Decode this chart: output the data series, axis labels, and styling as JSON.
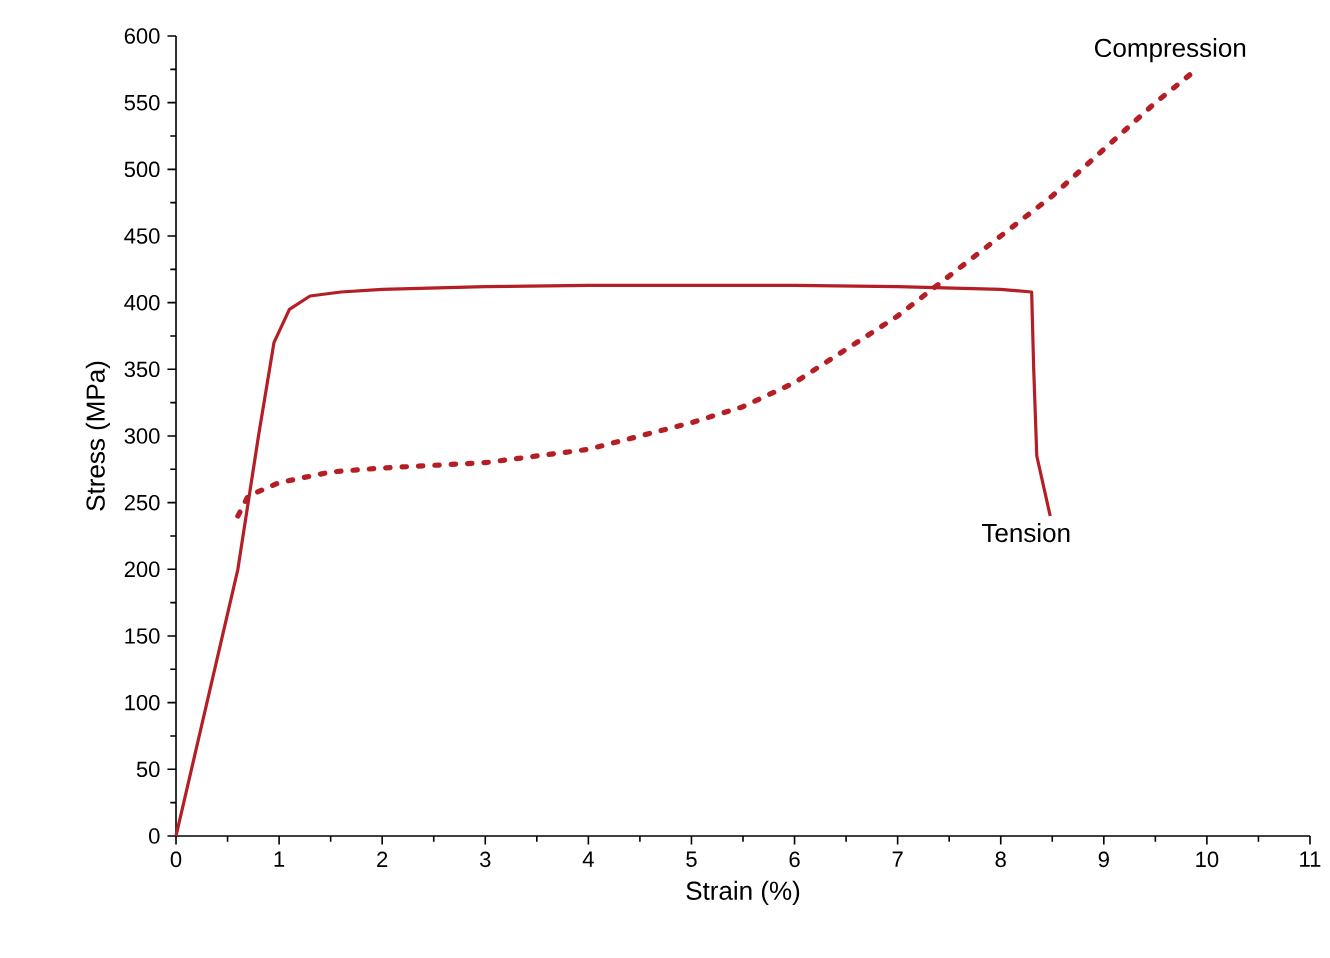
{
  "chart_data": {
    "type": "line",
    "xlabel": "Strain (%)",
    "ylabel": "Stress (MPa)",
    "xlim": [
      0,
      11
    ],
    "ylim": [
      0,
      600
    ],
    "xticks": [
      0,
      1,
      2,
      3,
      4,
      5,
      6,
      7,
      8,
      9,
      10,
      11
    ],
    "yticks": [
      0,
      50,
      100,
      150,
      200,
      250,
      300,
      350,
      400,
      450,
      500,
      550,
      600
    ],
    "grid": false,
    "marker": "none",
    "series": [
      {
        "name": "Tension",
        "color": "#b41e24",
        "line_style": "solid",
        "x": [
          0,
          0.3,
          0.6,
          0.8,
          0.95,
          1.1,
          1.3,
          1.6,
          2,
          3,
          4,
          5,
          6,
          7,
          8,
          8.3,
          8.32,
          8.35,
          8.48
        ],
        "values": [
          0,
          100,
          200,
          300,
          370,
          395,
          405,
          408,
          410,
          412,
          413,
          413,
          413,
          412,
          410,
          408,
          350,
          285,
          240
        ]
      },
      {
        "name": "Compression",
        "color": "#b41e24",
        "line_style": "dotted",
        "x": [
          0.6,
          0.7,
          1,
          1.5,
          2,
          3,
          4,
          5,
          5.5,
          6,
          6.5,
          7,
          7.5,
          8,
          8.5,
          9,
          9.5,
          9.9
        ],
        "values": [
          240,
          255,
          265,
          273,
          276,
          280,
          290,
          310,
          322,
          340,
          365,
          390,
          420,
          450,
          480,
          515,
          550,
          575
        ]
      }
    ]
  }
}
